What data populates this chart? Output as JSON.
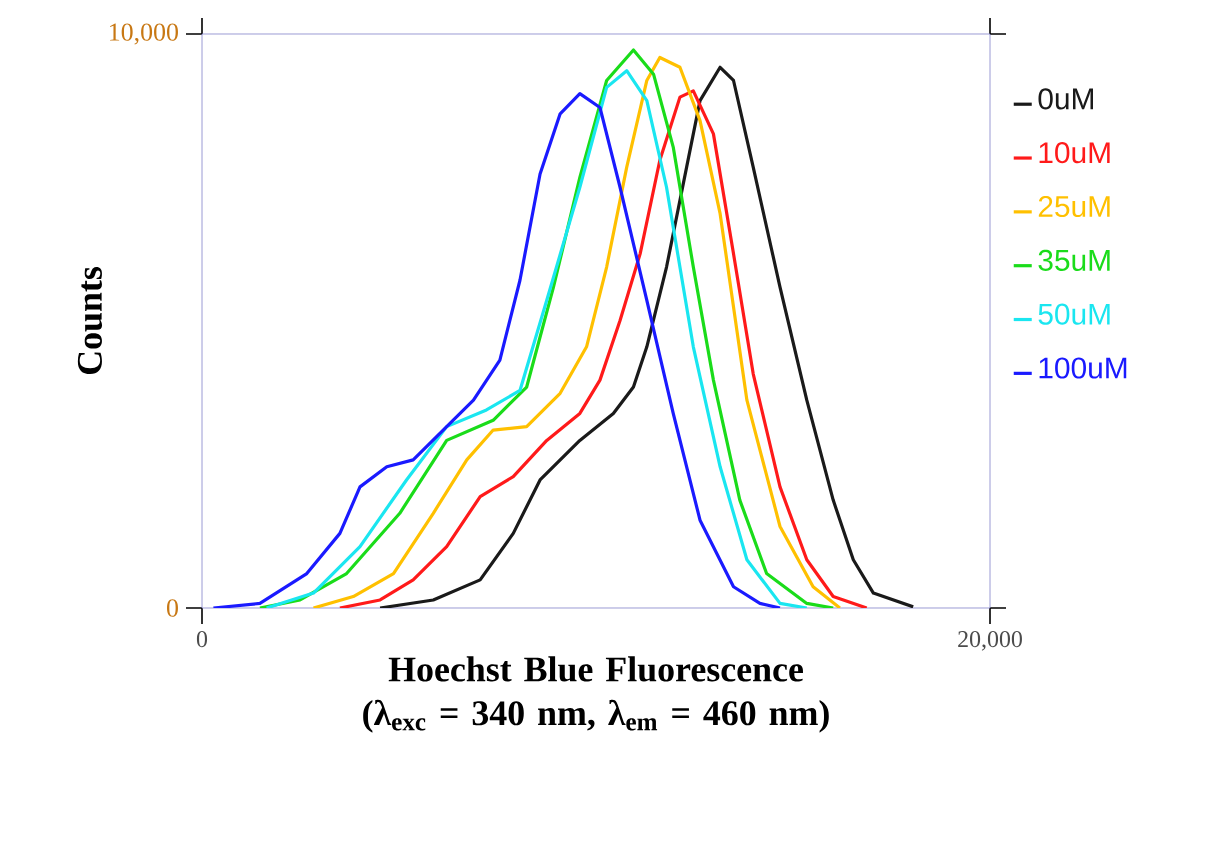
{
  "chart_data": {
    "type": "line",
    "xlabel": "Hoechst Blue Fluorescence (λ$_{exc}$ = 340 nm, λ$_{em}$ = 460 nm)",
    "ylabel": "Counts",
    "xlim": [
      0,
      20000
    ],
    "ylim": [
      0,
      10000
    ],
    "xticks": [
      0,
      {
        "value": 20000,
        "label": "20,000"
      }
    ],
    "yticks": [
      0,
      {
        "value": 10000,
        "label": "10,000"
      }
    ],
    "legend": "right",
    "grid": false,
    "series": [
      {
        "name": "0uM",
        "color": "#1a1a1a",
        "x": [
          4520,
          5870,
          7060,
          7900,
          8580,
          9590,
          10440,
          10950,
          11290,
          11790,
          12300,
          12640,
          13150,
          13490,
          13990,
          14670,
          15350,
          16020,
          16530,
          17040,
          18050
        ],
        "values": [
          0,
          140,
          490,
          1300,
          2230,
          2920,
          3390,
          3850,
          4550,
          5940,
          7680,
          8840,
          9420,
          9190,
          7680,
          5590,
          3620,
          1880,
          840,
          260,
          20
        ]
      },
      {
        "name": "10uM",
        "color": "#ff1a1a",
        "x": [
          3500,
          4520,
          5360,
          6210,
          7060,
          7900,
          8750,
          9590,
          10100,
          10610,
          11120,
          11620,
          12130,
          12470,
          12980,
          13490,
          13990,
          14670,
          15350,
          16020,
          16870
        ],
        "values": [
          0,
          140,
          490,
          1070,
          1940,
          2290,
          2920,
          3390,
          3970,
          5010,
          6170,
          7800,
          8900,
          9010,
          8260,
          6170,
          4080,
          2110,
          840,
          200,
          0
        ]
      },
      {
        "name": "25uM",
        "color": "#ffc000",
        "x": [
          2830,
          3840,
          4860,
          5870,
          6720,
          7390,
          8240,
          9090,
          9760,
          10270,
          10780,
          11290,
          11620,
          12130,
          12640,
          13150,
          13830,
          14670,
          15510,
          16190
        ],
        "values": [
          0,
          200,
          600,
          1650,
          2580,
          3100,
          3160,
          3740,
          4550,
          5940,
          7680,
          9190,
          9590,
          9420,
          8490,
          6870,
          3620,
          1420,
          370,
          0
        ]
      },
      {
        "name": "35uM",
        "color": "#1adc1a",
        "x": [
          1470,
          2490,
          3670,
          5020,
          6210,
          7390,
          8240,
          8920,
          9590,
          10270,
          10950,
          11460,
          11960,
          12470,
          12980,
          13650,
          14330,
          15350,
          16020
        ],
        "values": [
          0,
          140,
          600,
          1650,
          2920,
          3270,
          3850,
          5590,
          7500,
          9190,
          9720,
          9300,
          8030,
          5940,
          3970,
          1880,
          600,
          80,
          0
        ]
      },
      {
        "name": "50uM",
        "color": "#1ae6f0",
        "x": [
          1640,
          2830,
          4010,
          5190,
          6210,
          7220,
          8070,
          8750,
          9590,
          10270,
          10780,
          11290,
          11790,
          12470,
          13150,
          13830,
          14670,
          15350
        ],
        "values": [
          0,
          260,
          1070,
          2230,
          3160,
          3450,
          3790,
          5360,
          7330,
          9070,
          9360,
          8840,
          7330,
          4550,
          2460,
          840,
          80,
          0
        ]
      },
      {
        "name": "100uM",
        "color": "#1a1aff",
        "x": [
          290,
          1470,
          2660,
          3500,
          4010,
          4690,
          5360,
          6210,
          6890,
          7560,
          8070,
          8580,
          9090,
          9590,
          10100,
          10610,
          11290,
          11960,
          12640,
          13490,
          14160,
          14670
        ],
        "values": [
          0,
          80,
          600,
          1300,
          2110,
          2460,
          2580,
          3160,
          3620,
          4320,
          5710,
          7560,
          8610,
          8960,
          8720,
          7330,
          5360,
          3390,
          1530,
          370,
          80,
          0
        ]
      }
    ]
  }
}
